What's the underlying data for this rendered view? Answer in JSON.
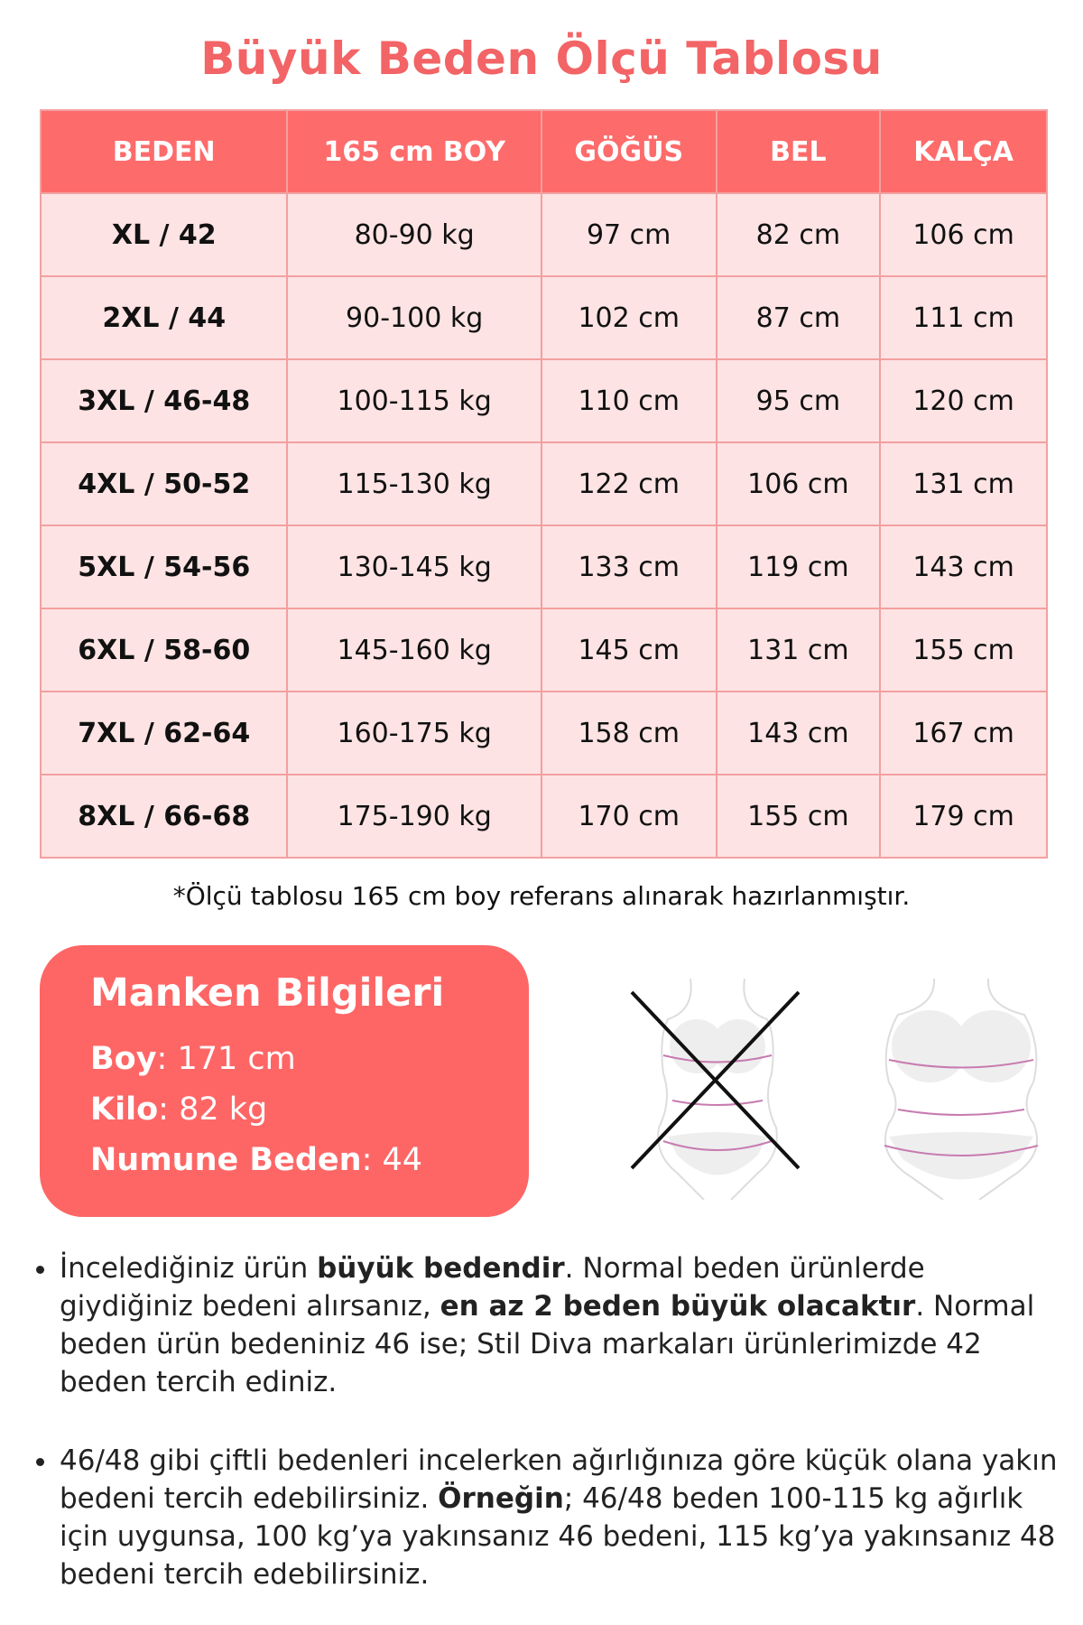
{
  "title": "Büyük Beden Ölçü Tablosu",
  "table": {
    "headers": [
      "BEDEN",
      "165 cm BOY",
      "GÖĞÜS",
      "BEL",
      "KALÇA"
    ],
    "rows": [
      [
        "XL / 42",
        "80-90 kg",
        "97 cm",
        "82 cm",
        "106 cm"
      ],
      [
        "2XL / 44",
        "90-100 kg",
        "102 cm",
        "87 cm",
        "111 cm"
      ],
      [
        "3XL / 46-48",
        "100-115 kg",
        "110 cm",
        "95 cm",
        "120 cm"
      ],
      [
        "4XL / 50-52",
        "115-130 kg",
        "122 cm",
        "106 cm",
        "131 cm"
      ],
      [
        "5XL / 54-56",
        "130-145 kg",
        "133 cm",
        "119 cm",
        "143 cm"
      ],
      [
        "6XL / 58-60",
        "145-160 kg",
        "145 cm",
        "131 cm",
        "155 cm"
      ],
      [
        "7XL / 62-64",
        "160-175 kg",
        "158 cm",
        "143 cm",
        "167 cm"
      ],
      [
        "8XL / 66-68",
        "175-190 kg",
        "170 cm",
        "155 cm",
        "179 cm"
      ]
    ]
  },
  "note": "*Ölçü tablosu 165 cm boy referans alınarak hazırlanmıştır.",
  "model": {
    "title": "Manken Bilgileri",
    "items": [
      {
        "label": "Boy",
        "value": ": 171 cm"
      },
      {
        "label": "Kilo",
        "value": ": 82 kg"
      },
      {
        "label": "Numune Beden",
        "value": ": 44"
      }
    ]
  },
  "colors": {
    "accent": "#fe6b6b",
    "row_bg": "#fde3e3",
    "title": "#f26466"
  },
  "bullets": [
    {
      "parts": [
        [
          "İncelediğiniz ürün ",
          false
        ],
        [
          "büyük bedendir",
          true
        ],
        [
          ". Normal beden ürünlerde giydiğiniz bedeni alırsanız, ",
          false
        ],
        [
          "en az 2 beden büyük olacaktır",
          true
        ],
        [
          ". Normal beden ürün bedeniniz 46 ise; Stil Diva markaları ürünlerimizde 42 beden tercih ediniz.",
          false
        ]
      ]
    },
    {
      "parts": [
        [
          "46/48 gibi çiftli bedenleri incelerken ağırlığınıza göre küçük olana yakın bedeni tercih edebilirsiniz. ",
          false
        ],
        [
          "Örneğin",
          true
        ],
        [
          "; 46/48 beden 100-115 kg ağırlık için uygunsa, 100 kg’ya yakınsanız 46 bedeni, 115 kg’ya yakınsanız 48 bedeni tercih edebilirsiniz.",
          false
        ]
      ]
    }
  ]
}
